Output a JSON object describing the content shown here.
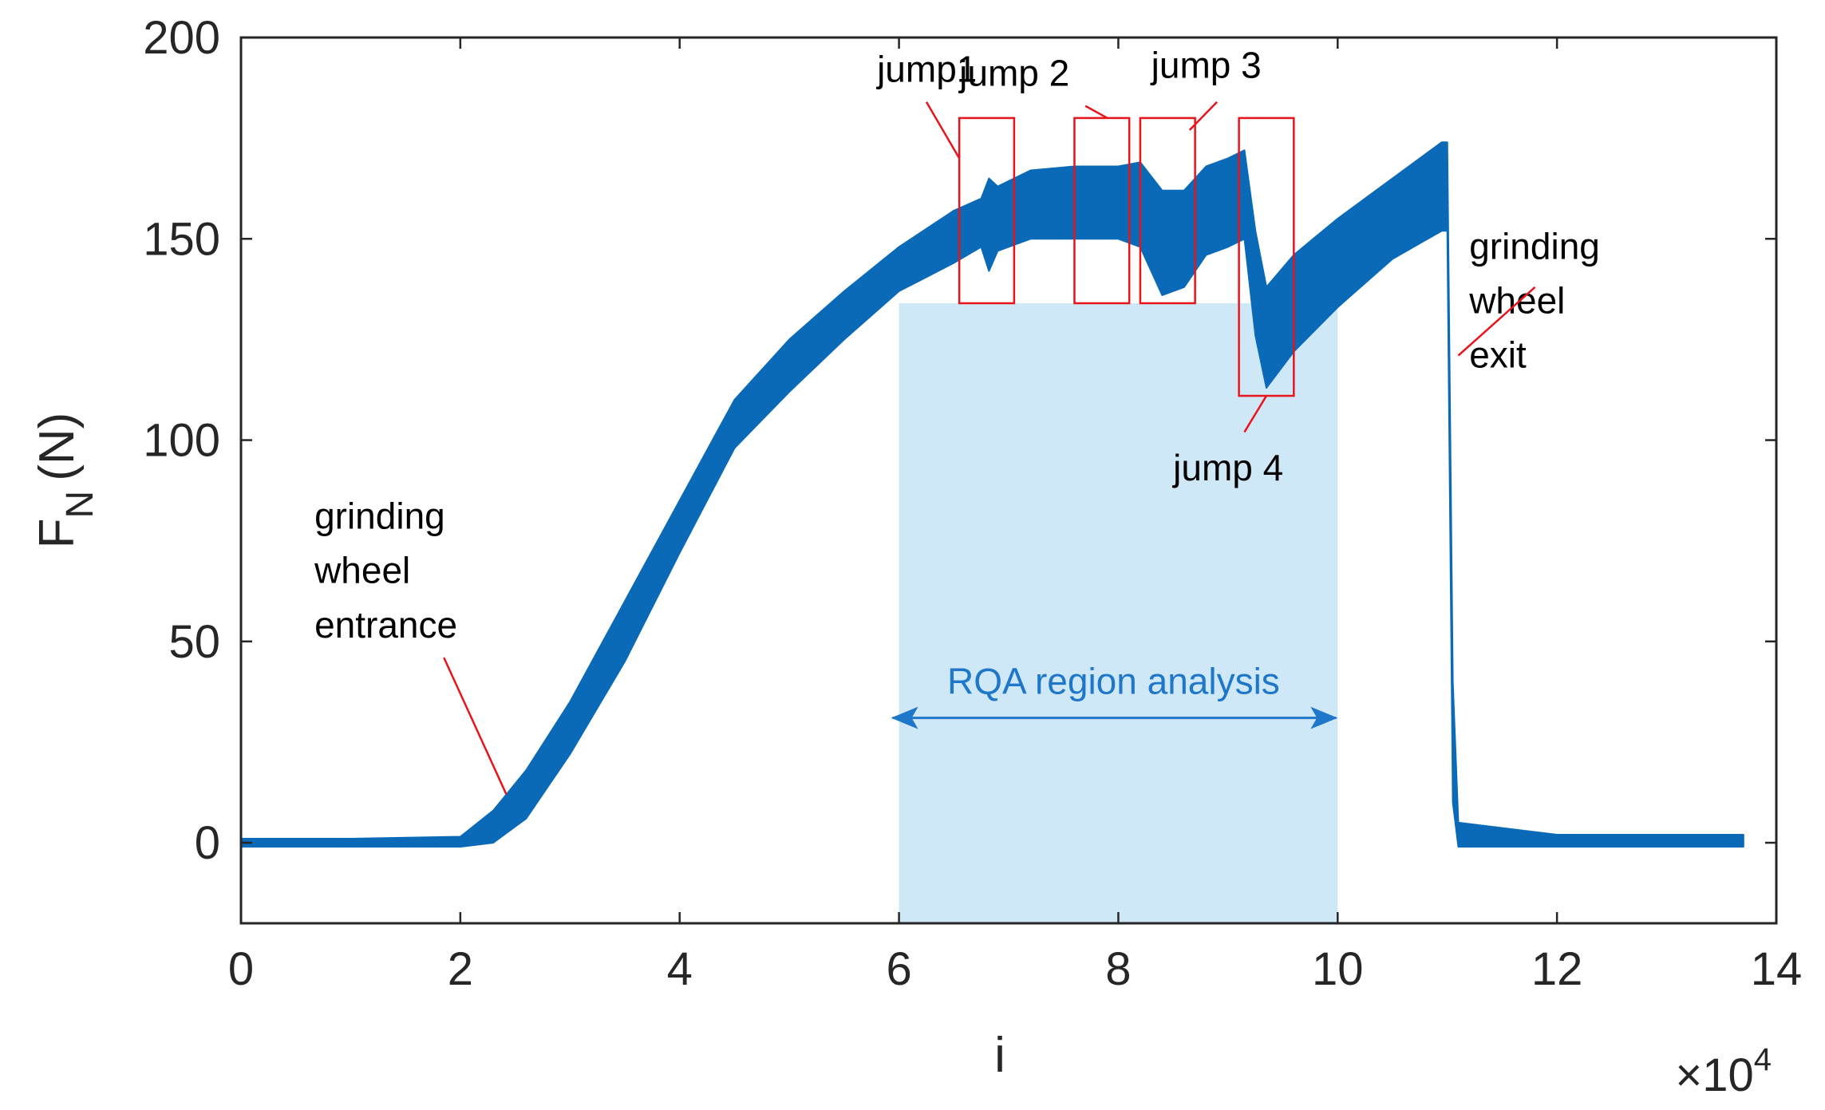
{
  "chart_data": {
    "type": "line",
    "title": "",
    "xlabel": "i",
    "ylabel_main": "F",
    "ylabel_sub": "N",
    "ylabel_unit": "(N)",
    "x_exponent_base": "×10",
    "x_exponent_power": "4",
    "xlim": [
      0,
      14
    ],
    "ylim": [
      -20,
      200
    ],
    "x_ticks": [
      0,
      2,
      4,
      6,
      8,
      10,
      12,
      14
    ],
    "x_tick_labels": [
      "0",
      "2",
      "4",
      "6",
      "8",
      "10",
      "12",
      "14"
    ],
    "y_ticks": [
      0,
      50,
      100,
      150,
      200
    ],
    "y_tick_labels": [
      "0",
      "50",
      "100",
      "150",
      "200"
    ],
    "grid": false,
    "series_color": "#0a6ab8",
    "series": [
      {
        "name": "F_N",
        "x": [
          0,
          1.0,
          2.0,
          2.3,
          2.6,
          3.0,
          3.5,
          4.0,
          4.5,
          5.0,
          5.5,
          6.0,
          6.5,
          6.75,
          6.82,
          6.9,
          7.2,
          7.6,
          8.0,
          8.2,
          8.4,
          8.6,
          8.8,
          9.0,
          9.15,
          9.25,
          9.35,
          9.6,
          10.0,
          10.5,
          10.95,
          11.0,
          11.05,
          11.1,
          12.0,
          13.7
        ],
        "upper": [
          1,
          1,
          1.5,
          8,
          18,
          35,
          60,
          85,
          110,
          125,
          137,
          148,
          157,
          160,
          165,
          163,
          167,
          168,
          168,
          169,
          162,
          162,
          168,
          170,
          172,
          152,
          138,
          146,
          155,
          165,
          174,
          174,
          40,
          5,
          2,
          2
        ],
        "lower": [
          -1,
          -1,
          -1,
          0,
          6,
          22,
          45,
          72,
          98,
          112,
          125,
          137,
          144,
          148,
          142,
          147,
          150,
          150,
          150,
          148,
          136,
          138,
          146,
          148,
          150,
          126,
          113,
          122,
          133,
          145,
          152,
          152,
          10,
          -1,
          -1,
          -1
        ]
      }
    ],
    "rqa_region": {
      "x_start": 6,
      "x_end": 10,
      "y_bottom": -20,
      "y_top": 134,
      "label": "RQA region analysis",
      "arrow_y": 31,
      "color": "#1f77c9"
    },
    "jump_boxes": [
      {
        "label": "jump1",
        "x1": 6.55,
        "x2": 7.05,
        "y1": 134,
        "y2": 180,
        "text_x": 5.8,
        "text_y": 189,
        "leader": [
          6.25,
          184,
          6.55,
          170
        ]
      },
      {
        "label": "jump 2",
        "x1": 7.6,
        "x2": 8.1,
        "y1": 134,
        "y2": 180,
        "text_x": 6.55,
        "text_y": 188,
        "leader": [
          7.7,
          183,
          7.9,
          180
        ]
      },
      {
        "label": "jump 3",
        "x1": 8.2,
        "x2": 8.7,
        "y1": 134,
        "y2": 180,
        "text_x": 8.3,
        "text_y": 190,
        "leader": [
          8.9,
          184,
          8.65,
          177
        ]
      },
      {
        "label": "jump 4",
        "x1": 9.1,
        "x2": 9.6,
        "y1": 111,
        "y2": 180,
        "text_x": 8.5,
        "text_y": 90,
        "leader": [
          9.15,
          102,
          9.35,
          111
        ]
      }
    ],
    "annotations": [
      {
        "lines": [
          "grinding",
          "wheel",
          "entrance"
        ],
        "x": 0.67,
        "y": 78,
        "line_step": 13.5,
        "leader": [
          1.85,
          46,
          2.42,
          12
        ]
      },
      {
        "lines": [
          "grinding",
          "wheel",
          "exit"
        ],
        "x": 11.2,
        "y": 145,
        "line_step": 13.5,
        "leader": [
          11.8,
          138,
          11.1,
          121
        ]
      }
    ]
  }
}
